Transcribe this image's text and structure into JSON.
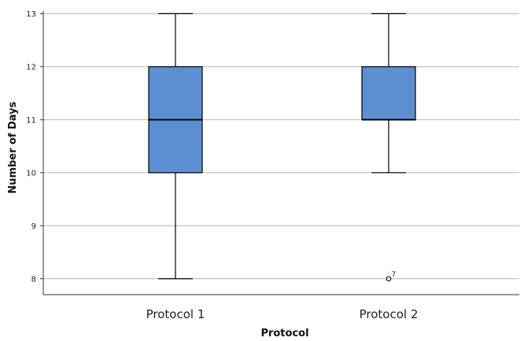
{
  "chart_data": {
    "type": "boxplot",
    "xlabel": "Protocol",
    "ylabel": "Number of Days",
    "ylim": [
      7.7,
      13.05
    ],
    "yticks": [
      8,
      9,
      10,
      11,
      12,
      13
    ],
    "grid": true,
    "box_color": "#5b8fd1",
    "categories": [
      "Protocol 1",
      "Protocol 2"
    ],
    "boxes": [
      {
        "category": "Protocol 1",
        "min": 8,
        "q1": 10,
        "median": 11,
        "q3": 12,
        "max": 13,
        "outliers": []
      },
      {
        "category": "Protocol 2",
        "min": 10,
        "q1": 11,
        "median": 11,
        "q3": 12,
        "max": 13,
        "outliers": [
          {
            "value": 8,
            "label": "7"
          }
        ]
      }
    ]
  }
}
